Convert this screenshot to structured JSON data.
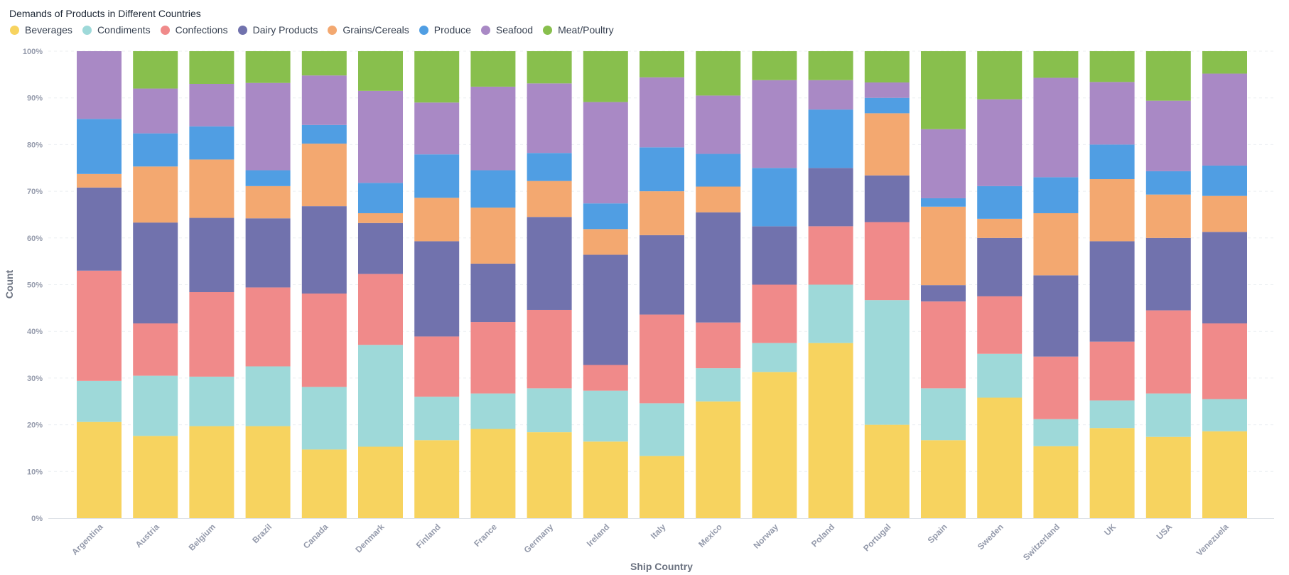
{
  "chart_data": {
    "type": "bar",
    "stacked": true,
    "normalized": true,
    "title": "Demands of Products in Different Countries",
    "xlabel": "Ship Country",
    "ylabel": "Count",
    "ylim": [
      0,
      100
    ],
    "yticks": [
      "0%",
      "10%",
      "20%",
      "30%",
      "40%",
      "50%",
      "60%",
      "70%",
      "80%",
      "90%",
      "100%"
    ],
    "categories": [
      "Argentina",
      "Austria",
      "Belgium",
      "Brazil",
      "Canada",
      "Denmark",
      "Finland",
      "France",
      "Germany",
      "Ireland",
      "Italy",
      "Mexico",
      "Norway",
      "Poland",
      "Portugal",
      "Spain",
      "Sweden",
      "Switzerland",
      "UK",
      "USA",
      "Venezuela"
    ],
    "series": [
      {
        "name": "Beverages",
        "color": "#F7D35F",
        "values": [
          20.6,
          17.6,
          19.7,
          19.7,
          14.7,
          15.3,
          16.7,
          19.1,
          18.4,
          16.4,
          13.3,
          25.0,
          31.3,
          37.5,
          20.0,
          16.7,
          25.8,
          15.4,
          19.3,
          17.4,
          18.6
        ]
      },
      {
        "name": "Condiments",
        "color": "#9ED9D9",
        "values": [
          8.8,
          12.9,
          10.6,
          12.8,
          13.4,
          21.8,
          9.3,
          7.6,
          9.4,
          10.9,
          11.3,
          7.1,
          6.2,
          12.5,
          26.7,
          11.1,
          9.4,
          5.8,
          5.9,
          9.3,
          6.9
        ]
      },
      {
        "name": "Confections",
        "color": "#F08A8A",
        "values": [
          23.6,
          11.2,
          18.1,
          16.9,
          20.0,
          15.2,
          12.9,
          15.3,
          16.8,
          5.5,
          19.0,
          9.8,
          12.5,
          12.5,
          16.7,
          18.6,
          12.3,
          13.4,
          12.6,
          17.8,
          16.2
        ]
      },
      {
        "name": "Dairy Products",
        "color": "#7172AD",
        "values": [
          17.8,
          21.6,
          15.9,
          14.8,
          18.7,
          10.9,
          20.4,
          12.5,
          19.9,
          23.6,
          17.0,
          23.6,
          12.5,
          12.5,
          10.0,
          3.5,
          12.5,
          17.4,
          21.5,
          15.5,
          19.6
        ]
      },
      {
        "name": "Grains/Cereals",
        "color": "#F3A870",
        "values": [
          2.9,
          12.0,
          12.5,
          6.9,
          13.4,
          2.1,
          9.3,
          12.0,
          7.7,
          5.5,
          9.4,
          5.5,
          0.0,
          0.0,
          13.3,
          16.8,
          4.1,
          13.3,
          13.3,
          9.3,
          7.7
        ]
      },
      {
        "name": "Produce",
        "color": "#509EE3",
        "values": [
          11.8,
          7.1,
          7.1,
          3.4,
          4.0,
          6.5,
          9.3,
          8.0,
          6.0,
          5.5,
          9.4,
          7.0,
          12.5,
          12.5,
          3.3,
          1.8,
          7.0,
          7.7,
          7.4,
          5.0,
          6.5
        ]
      },
      {
        "name": "Seafood",
        "color": "#A989C5",
        "values": [
          14.5,
          9.6,
          9.1,
          18.7,
          10.6,
          19.7,
          11.1,
          17.9,
          14.9,
          21.7,
          15.0,
          12.5,
          18.8,
          6.3,
          3.3,
          14.8,
          18.6,
          21.3,
          13.4,
          15.1,
          19.7
        ]
      },
      {
        "name": "Meat/Poultry",
        "color": "#88BF4D",
        "values": [
          0.0,
          8.0,
          7.0,
          6.8,
          5.2,
          8.5,
          11.0,
          7.6,
          6.9,
          10.9,
          5.6,
          9.5,
          6.2,
          6.2,
          6.7,
          16.7,
          10.3,
          5.7,
          6.6,
          10.6,
          4.8
        ]
      }
    ]
  }
}
